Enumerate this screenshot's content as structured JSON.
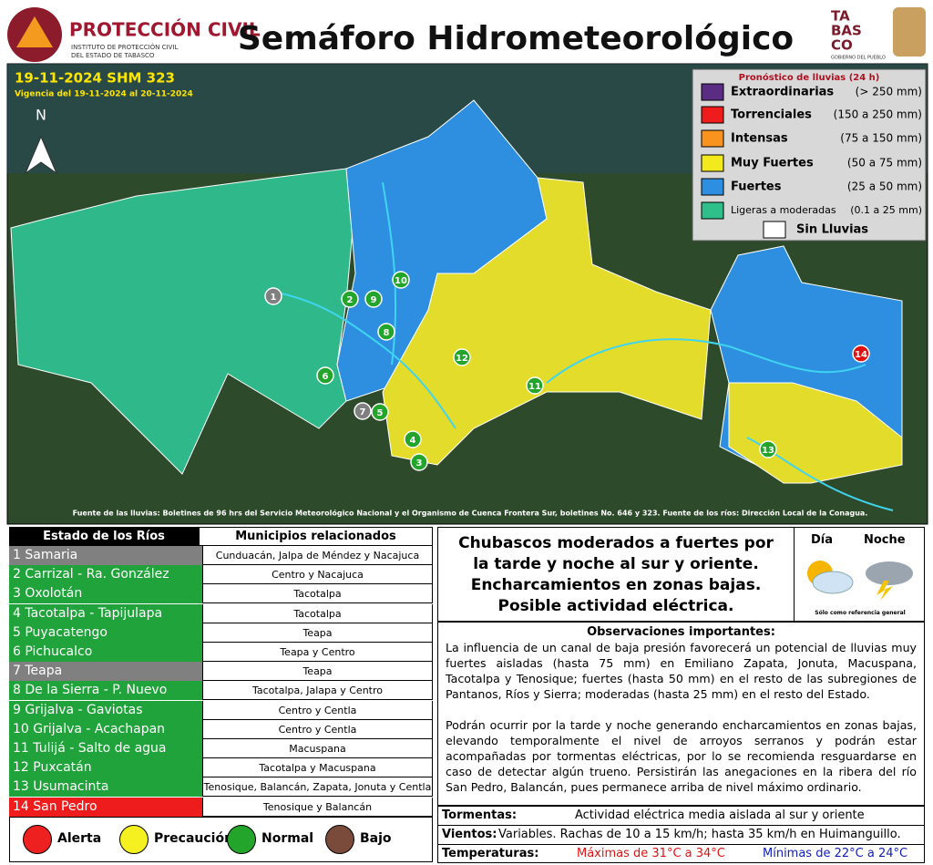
{
  "header": {
    "org": "PROTECCIÓN CIVIL",
    "org_sub": [
      "INSTITUTO DE PROTECCIÓN CIVIL",
      "DEL ESTADO DE TABASCO"
    ],
    "title": "Semáforo Hidrometeorológico",
    "logo": [
      "TA",
      "BAS",
      "CO"
    ],
    "logo_sub": "GOBIERNO DEL PUEBLO"
  },
  "map": {
    "date": "19-11-2024 SHM 323",
    "validity": "Vigencia del 19-11-2024 al 20-11-2024",
    "north": "N",
    "source": "Fuente de las lluvias: Boletines de 96 hrs del Servicio Meteorológico Nacional y el Organismo de Cuenca Frontera Sur, boletines No. 646 y 323. Fuente de los ríos: Dirección Local de la Conagua.",
    "markers": [
      {
        "label": "1",
        "color": "#808080"
      },
      {
        "label": "2",
        "color": "#22a52a"
      },
      {
        "label": "3",
        "color": "#22a52a"
      },
      {
        "label": "4",
        "color": "#22a52a"
      },
      {
        "label": "5",
        "color": "#22a52a"
      },
      {
        "label": "6",
        "color": "#22a52a"
      },
      {
        "label": "7",
        "color": "#808080"
      },
      {
        "label": "8",
        "color": "#22a52a"
      },
      {
        "label": "9",
        "color": "#22a52a"
      },
      {
        "label": "10",
        "color": "#22a52a"
      },
      {
        "label": "11",
        "color": "#22a52a"
      },
      {
        "label": "12",
        "color": "#22a52a"
      },
      {
        "label": "13",
        "color": "#22a52a"
      },
      {
        "label": "14",
        "color": "#e01010"
      }
    ]
  },
  "legend": {
    "title": "Pronóstico de lluvias (24 h)",
    "items": [
      {
        "label": "Extraordinarias",
        "range": "(> 250 mm)",
        "color": "#5b2c83"
      },
      {
        "label": "Torrenciales",
        "range": "(150 a 250 mm)",
        "color": "#ee1c1c"
      },
      {
        "label": "Intensas",
        "range": "(75 a 150 mm)",
        "color": "#f7931e"
      },
      {
        "label": "Muy Fuertes",
        "range": "(50 a 75 mm)",
        "color": "#f2ea1d"
      },
      {
        "label": "Fuertes",
        "range": "(25 a 50 mm)",
        "color": "#2e8fe0"
      },
      {
        "label": "Ligeras a moderadas",
        "range": "(0.1 a 25 mm)",
        "color": "#2fbf8a"
      }
    ],
    "none": "Sin Lluvias"
  },
  "table": {
    "headers": [
      "Estado de los Ríos",
      "Municipios relacionados"
    ],
    "rows": [
      {
        "river": "1 Samaria",
        "municipalities": "Cunduacán, Jalpa de Méndez y Nacajuca",
        "color": "#808080"
      },
      {
        "river": "2 Carrizal - Ra. González",
        "municipalities": "Centro y Nacajuca",
        "color": "#1fa33a"
      },
      {
        "river": "3 Oxolotán",
        "municipalities": "Tacotalpa",
        "color": "#1fa33a"
      },
      {
        "river": "4 Tacotalpa - Tapijulapa",
        "municipalities": "Tacotalpa",
        "color": "#1fa33a"
      },
      {
        "river": "5 Puyacatengo",
        "municipalities": "Teapa",
        "color": "#1fa33a"
      },
      {
        "river": "6 Pichucalco",
        "municipalities": "Teapa y Centro",
        "color": "#1fa33a"
      },
      {
        "river": "7 Teapa",
        "municipalities": "Teapa",
        "color": "#808080"
      },
      {
        "river": "8 De la Sierra - P. Nuevo",
        "municipalities": "Tacotalpa, Jalapa y Centro",
        "color": "#1fa33a"
      },
      {
        "river": "9 Grijalva - Gaviotas",
        "municipalities": "Centro y Centla",
        "color": "#1fa33a"
      },
      {
        "river": "10 Grijalva - Acachapan",
        "municipalities": "Centro y Centla",
        "color": "#1fa33a"
      },
      {
        "river": "11 Tulijá - Salto de agua",
        "municipalities": "Macuspana",
        "color": "#1fa33a"
      },
      {
        "river": "12 Puxcatán",
        "municipalities": "Tacotalpa y Macuspana",
        "color": "#1fa33a"
      },
      {
        "river": "13 Usumacinta",
        "municipalities": "Tenosique, Balancán, Zapata, Jonuta y Centla",
        "color": "#1fa33a"
      },
      {
        "river": "14 San Pedro",
        "municipalities": "Tenosique y Balancán",
        "color": "#ee1c1c"
      }
    ]
  },
  "status_legend": [
    {
      "label": "Alerta",
      "color": "#ee2020"
    },
    {
      "label": "Precaución",
      "color": "#f5f020"
    },
    {
      "label": "Normal",
      "color": "#22a52a"
    },
    {
      "label": "Bajo",
      "color": "#7a4a3a"
    }
  ],
  "forecast": {
    "headline": [
      "Chubascos moderados a fuertes por",
      "la tarde y noche al sur y oriente.",
      "Encharcamientos en zonas bajas.",
      "Posible actividad eléctrica."
    ],
    "day": "Día",
    "night": "Noche",
    "note": "Sólo como referencia general"
  },
  "observations": {
    "title": "Observaciones importantes:",
    "paragraphs": [
      "La influencia de un canal de baja presión favorecerá un potencial de lluvias muy fuertes aisladas (hasta 75 mm) en Emiliano Zapata, Jonuta, Macuspana, Tacotalpa y Tenosique; fuertes (hasta 50 mm) en el resto de las subregiones de Pantanos, Ríos y Sierra; moderadas (hasta 25 mm) en el resto del Estado.",
      "Podrán ocurrir por la tarde y noche generando encharcamientos en zonas bajas, elevando temporalmente el nivel de arroyos serranos y podrán estar acompañadas por tormentas eléctricas, por lo se recomienda resguardarse en caso de detectar algún trueno. Persistirán las anegaciones en la ribera del río San Pedro, Balancán, pues permanece arriba de nivel máximo ordinario."
    ]
  },
  "details": {
    "storms_label": "Tormentas:",
    "storms": "Actividad eléctrica media aislada al sur y oriente",
    "winds_label": "Vientos:",
    "winds": "Variables. Rachas de 10 a 15 km/h; hasta 35 km/h en Huimanguillo.",
    "temp_label": "Temperaturas:",
    "temp_max": "Máximas de 31°C a 34°C",
    "temp_min": "Mínimas de 22°C a 24°C"
  }
}
